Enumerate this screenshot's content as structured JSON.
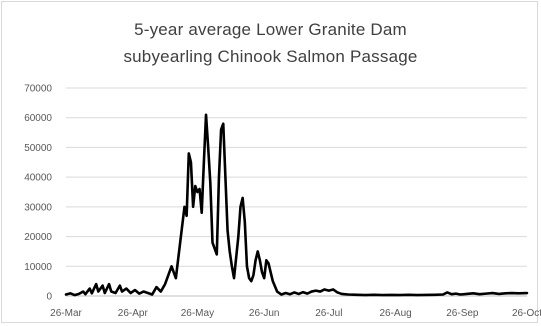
{
  "chart_data": {
    "type": "line",
    "title_lines": [
      "5-year average Lower Granite Dam",
      "subyearling Chinook Salmon Passage"
    ],
    "xlabel": "",
    "ylabel": "",
    "ylim": [
      0,
      70000
    ],
    "y_ticks": [
      0,
      10000,
      20000,
      30000,
      40000,
      50000,
      60000,
      70000
    ],
    "y_tick_labels": [
      "0",
      "10000",
      "20000",
      "30000",
      "40000",
      "50000",
      "60000",
      "70000"
    ],
    "x_range": [
      "2019-03-26",
      "2019-10-26"
    ],
    "x_ticks": [
      "2019-03-26",
      "2019-04-26",
      "2019-05-26",
      "2019-06-26",
      "2019-07-26",
      "2019-08-26",
      "2019-09-26",
      "2019-10-26"
    ],
    "x_tick_labels": [
      "26-Mar",
      "26-Apr",
      "26-May",
      "26-Jun",
      "26-Jul",
      "26-Aug",
      "26-Sep",
      "26-Oct"
    ],
    "grid": true,
    "line_color": "#000000",
    "series": [
      {
        "points": [
          [
            "2019-03-26",
            500
          ],
          [
            "2019-03-28",
            900
          ],
          [
            "2019-03-30",
            300
          ],
          [
            "2019-04-01",
            700
          ],
          [
            "2019-04-03",
            1500
          ],
          [
            "2019-04-04",
            600
          ],
          [
            "2019-04-06",
            2500
          ],
          [
            "2019-04-07",
            900
          ],
          [
            "2019-04-09",
            4000
          ],
          [
            "2019-04-10",
            1500
          ],
          [
            "2019-04-12",
            3500
          ],
          [
            "2019-04-13",
            1000
          ],
          [
            "2019-04-15",
            4000
          ],
          [
            "2019-04-16",
            1500
          ],
          [
            "2019-04-18",
            1000
          ],
          [
            "2019-04-20",
            3500
          ],
          [
            "2019-04-21",
            1500
          ],
          [
            "2019-04-23",
            2500
          ],
          [
            "2019-04-25",
            1000
          ],
          [
            "2019-04-27",
            2000
          ],
          [
            "2019-04-29",
            800
          ],
          [
            "2019-05-01",
            1500
          ],
          [
            "2019-05-03",
            1000
          ],
          [
            "2019-05-05",
            500
          ],
          [
            "2019-05-07",
            3000
          ],
          [
            "2019-05-09",
            1500
          ],
          [
            "2019-05-11",
            4000
          ],
          [
            "2019-05-13",
            8000
          ],
          [
            "2019-05-14",
            10000
          ],
          [
            "2019-05-16",
            6000
          ],
          [
            "2019-05-18",
            18000
          ],
          [
            "2019-05-20",
            30000
          ],
          [
            "2019-05-21",
            27000
          ],
          [
            "2019-05-22",
            48000
          ],
          [
            "2019-05-23",
            45000
          ],
          [
            "2019-05-24",
            30000
          ],
          [
            "2019-05-25",
            37000
          ],
          [
            "2019-05-26",
            35000
          ],
          [
            "2019-05-27",
            36000
          ],
          [
            "2019-05-28",
            28000
          ],
          [
            "2019-05-29",
            45000
          ],
          [
            "2019-05-30",
            61000
          ],
          [
            "2019-05-31",
            50000
          ],
          [
            "2019-06-01",
            38000
          ],
          [
            "2019-06-02",
            18000
          ],
          [
            "2019-06-04",
            14000
          ],
          [
            "2019-06-05",
            40000
          ],
          [
            "2019-06-06",
            56000
          ],
          [
            "2019-06-07",
            58000
          ],
          [
            "2019-06-08",
            40000
          ],
          [
            "2019-06-09",
            22000
          ],
          [
            "2019-06-10",
            15000
          ],
          [
            "2019-06-11",
            10000
          ],
          [
            "2019-06-12",
            6000
          ],
          [
            "2019-06-14",
            20000
          ],
          [
            "2019-06-15",
            30000
          ],
          [
            "2019-06-16",
            33000
          ],
          [
            "2019-06-17",
            25000
          ],
          [
            "2019-06-18",
            10000
          ],
          [
            "2019-06-19",
            6000
          ],
          [
            "2019-06-20",
            5000
          ],
          [
            "2019-06-21",
            7000
          ],
          [
            "2019-06-22",
            12000
          ],
          [
            "2019-06-23",
            15000
          ],
          [
            "2019-06-24",
            12000
          ],
          [
            "2019-06-25",
            8000
          ],
          [
            "2019-06-26",
            6000
          ],
          [
            "2019-06-27",
            12000
          ],
          [
            "2019-06-28",
            11000
          ],
          [
            "2019-06-30",
            5000
          ],
          [
            "2019-07-02",
            1500
          ],
          [
            "2019-07-04",
            500
          ],
          [
            "2019-07-06",
            1000
          ],
          [
            "2019-07-08",
            600
          ],
          [
            "2019-07-10",
            1200
          ],
          [
            "2019-07-12",
            700
          ],
          [
            "2019-07-14",
            1300
          ],
          [
            "2019-07-16",
            800
          ],
          [
            "2019-07-18",
            1500
          ],
          [
            "2019-07-20",
            1800
          ],
          [
            "2019-07-22",
            1500
          ],
          [
            "2019-07-24",
            2200
          ],
          [
            "2019-07-26",
            1800
          ],
          [
            "2019-07-28",
            2200
          ],
          [
            "2019-07-30",
            1200
          ],
          [
            "2019-08-01",
            700
          ],
          [
            "2019-08-04",
            500
          ],
          [
            "2019-08-08",
            400
          ],
          [
            "2019-08-12",
            300
          ],
          [
            "2019-08-16",
            400
          ],
          [
            "2019-08-20",
            300
          ],
          [
            "2019-08-24",
            350
          ],
          [
            "2019-08-28",
            300
          ],
          [
            "2019-09-01",
            400
          ],
          [
            "2019-09-05",
            300
          ],
          [
            "2019-09-09",
            350
          ],
          [
            "2019-09-13",
            400
          ],
          [
            "2019-09-17",
            500
          ],
          [
            "2019-09-19",
            1200
          ],
          [
            "2019-09-21",
            600
          ],
          [
            "2019-09-23",
            800
          ],
          [
            "2019-09-25",
            500
          ],
          [
            "2019-09-28",
            700
          ],
          [
            "2019-10-01",
            900
          ],
          [
            "2019-10-04",
            600
          ],
          [
            "2019-10-07",
            800
          ],
          [
            "2019-10-10",
            1000
          ],
          [
            "2019-10-13",
            700
          ],
          [
            "2019-10-16",
            900
          ],
          [
            "2019-10-19",
            1000
          ],
          [
            "2019-10-22",
            900
          ],
          [
            "2019-10-26",
            1000
          ]
        ]
      }
    ]
  }
}
